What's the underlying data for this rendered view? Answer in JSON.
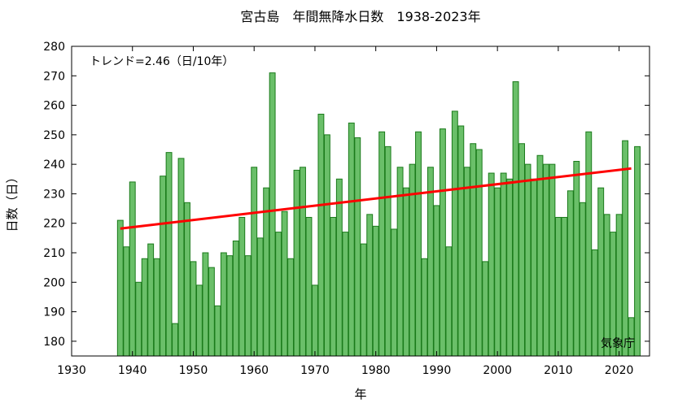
{
  "chart_data": {
    "type": "bar",
    "title": "宮古島　年間無降水日数　1938-2023年",
    "xlabel": "年",
    "ylabel": "日数（日）",
    "xlim": [
      1930,
      2025
    ],
    "ylim": [
      175,
      280
    ],
    "x_ticks": [
      1930,
      1940,
      1950,
      1960,
      1970,
      1980,
      1990,
      2000,
      2010,
      2020
    ],
    "y_ticks": [
      180,
      190,
      200,
      210,
      220,
      230,
      240,
      250,
      260,
      270,
      280
    ],
    "grid": false,
    "legend": "none",
    "bar_color": "#6abf69",
    "bar_edge_color": "#1a7a1a",
    "trend_color": "#ff0000",
    "series": [
      {
        "x": [
          1938,
          1939,
          1940,
          1941,
          1942,
          1943,
          1944,
          1945,
          1946,
          1947,
          1948,
          1949,
          1950,
          1951,
          1952,
          1953,
          1954,
          1955,
          1956,
          1957,
          1958,
          1959,
          1960,
          1961,
          1962,
          1963,
          1964,
          1965,
          1966,
          1967,
          1968,
          1969,
          1970,
          1971,
          1972,
          1973,
          1974,
          1975,
          1976,
          1977,
          1978,
          1979,
          1980,
          1981,
          1982,
          1983,
          1984,
          1985,
          1986,
          1987,
          1988,
          1989,
          1990,
          1991,
          1992,
          1993,
          1994,
          1995,
          1996,
          1997,
          1998,
          1999,
          2000,
          2001,
          2002,
          2003,
          2004,
          2005,
          2006,
          2007,
          2008,
          2009,
          2010,
          2011,
          2012,
          2013,
          2014,
          2015,
          2016,
          2017,
          2018,
          2019,
          2020,
          2021,
          2022,
          2023
        ],
        "values": [
          221,
          212,
          234,
          200,
          208,
          213,
          208,
          236,
          244,
          186,
          242,
          227,
          207,
          199,
          210,
          205,
          192,
          210,
          209,
          214,
          222,
          209,
          239,
          215,
          232,
          271,
          217,
          224,
          208,
          238,
          239,
          222,
          199,
          257,
          250,
          222,
          235,
          217,
          254,
          249,
          213,
          223,
          219,
          251,
          246,
          218,
          239,
          232,
          240,
          251,
          208,
          239,
          226,
          252,
          212,
          258,
          253,
          239,
          247,
          245,
          207,
          237,
          232,
          237,
          235,
          268,
          247,
          240,
          235,
          243,
          240,
          240,
          222,
          222,
          231,
          241,
          227,
          251,
          211,
          232,
          223,
          217,
          223,
          248,
          188,
          246
        ]
      }
    ],
    "trend": {
      "label": "トレンド=2.46（日/10年）",
      "x": [
        1938,
        2022
      ],
      "y": [
        218.2,
        238.6
      ]
    },
    "annotations": {
      "source": "気象庁"
    }
  }
}
